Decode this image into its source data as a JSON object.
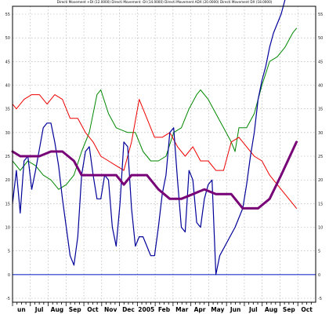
{
  "chart_data": {
    "type": "line",
    "title": "Directi Movement +DI (12.0000) Directi Movement -DI (14.0000) Directi Movement ADX (20.0000) Directi Movement DX (18.0000)",
    "xlabel": "",
    "ylabel": "",
    "ylim": [
      -5,
      60
    ],
    "yticks": [
      -5,
      0,
      5,
      10,
      15,
      20,
      25,
      30,
      35,
      40,
      45,
      50,
      55
    ],
    "x_labels": [
      "un",
      "Jul",
      "Aug",
      "Sep",
      "Oct",
      "Nov",
      "Dec",
      "2005",
      "Feb",
      "Mar",
      "Apr",
      "May",
      "Jun",
      "Jul",
      "Aug",
      "Sep",
      "Oct"
    ],
    "xlim": [
      0,
      79
    ],
    "grid": true,
    "reference_line": {
      "value": 0,
      "color": "#2233cc"
    },
    "series": [
      {
        "color": "#008800",
        "points": [
          [
            0,
            24
          ],
          [
            2,
            22
          ],
          [
            4,
            24
          ],
          [
            6,
            23
          ],
          [
            8,
            21
          ],
          [
            10,
            20
          ],
          [
            12,
            18
          ],
          [
            14,
            19
          ],
          [
            16,
            21
          ],
          [
            18,
            26
          ],
          [
            20,
            30
          ],
          [
            22,
            38
          ],
          [
            23,
            39
          ],
          [
            25,
            34
          ],
          [
            27,
            31
          ],
          [
            30,
            30
          ],
          [
            32,
            30
          ],
          [
            34,
            26
          ],
          [
            36,
            24
          ],
          [
            38,
            24
          ],
          [
            40,
            25
          ],
          [
            42,
            30
          ],
          [
            44,
            31
          ],
          [
            46,
            35
          ],
          [
            48,
            38
          ],
          [
            49,
            39
          ],
          [
            51,
            37
          ],
          [
            53,
            34
          ],
          [
            55,
            31
          ],
          [
            57,
            28
          ],
          [
            58,
            26
          ],
          [
            59,
            31
          ],
          [
            61,
            31
          ],
          [
            63,
            34
          ],
          [
            65,
            40
          ],
          [
            67,
            45
          ],
          [
            69,
            46
          ],
          [
            71,
            48
          ],
          [
            73,
            51
          ],
          [
            74,
            52
          ]
        ]
      },
      {
        "color": "#ee0000",
        "points": [
          [
            0,
            36
          ],
          [
            1,
            35
          ],
          [
            3,
            37
          ],
          [
            5,
            38
          ],
          [
            7,
            38
          ],
          [
            9,
            36
          ],
          [
            11,
            38
          ],
          [
            13,
            37
          ],
          [
            15,
            33
          ],
          [
            17,
            33
          ],
          [
            19,
            30
          ],
          [
            21,
            28
          ],
          [
            23,
            25
          ],
          [
            25,
            24
          ],
          [
            27,
            23
          ],
          [
            29,
            22
          ],
          [
            31,
            28
          ],
          [
            33,
            37
          ],
          [
            35,
            33
          ],
          [
            37,
            29
          ],
          [
            39,
            29
          ],
          [
            41,
            30
          ],
          [
            43,
            27
          ],
          [
            45,
            25
          ],
          [
            47,
            27
          ],
          [
            49,
            24
          ],
          [
            51,
            24
          ],
          [
            53,
            22
          ],
          [
            55,
            22
          ],
          [
            57,
            28
          ],
          [
            59,
            29
          ],
          [
            61,
            27
          ],
          [
            63,
            25
          ],
          [
            65,
            24
          ],
          [
            67,
            21
          ],
          [
            69,
            19
          ],
          [
            71,
            17
          ],
          [
            73,
            15
          ],
          [
            74,
            14
          ]
        ]
      },
      {
        "color": "#000099",
        "points": [
          [
            0,
            15
          ],
          [
            1,
            22
          ],
          [
            2,
            13
          ],
          [
            3,
            24
          ],
          [
            4,
            25
          ],
          [
            5,
            18
          ],
          [
            6,
            22
          ],
          [
            8,
            31
          ],
          [
            9,
            32
          ],
          [
            10,
            32
          ],
          [
            11,
            28
          ],
          [
            12,
            23
          ],
          [
            13,
            16
          ],
          [
            14,
            10
          ],
          [
            15,
            4
          ],
          [
            16,
            2
          ],
          [
            17,
            8
          ],
          [
            18,
            21
          ],
          [
            19,
            26
          ],
          [
            20,
            27
          ],
          [
            21,
            21
          ],
          [
            22,
            16
          ],
          [
            23,
            16
          ],
          [
            24,
            21
          ],
          [
            25,
            20
          ],
          [
            26,
            10
          ],
          [
            27,
            6
          ],
          [
            28,
            15
          ],
          [
            29,
            28
          ],
          [
            30,
            27
          ],
          [
            31,
            14
          ],
          [
            32,
            6
          ],
          [
            33,
            8
          ],
          [
            34,
            8
          ],
          [
            35,
            6
          ],
          [
            36,
            4
          ],
          [
            37,
            4
          ],
          [
            38,
            10
          ],
          [
            39,
            17
          ],
          [
            40,
            21
          ],
          [
            41,
            30
          ],
          [
            42,
            31
          ],
          [
            43,
            20
          ],
          [
            44,
            10
          ],
          [
            45,
            9
          ],
          [
            46,
            22
          ],
          [
            47,
            20
          ],
          [
            48,
            11
          ],
          [
            49,
            10
          ],
          [
            50,
            16
          ],
          [
            51,
            19
          ],
          [
            52,
            20
          ],
          [
            53,
            0
          ],
          [
            54,
            4
          ],
          [
            56,
            7
          ],
          [
            58,
            10
          ],
          [
            60,
            14
          ],
          [
            61,
            19
          ],
          [
            62,
            25
          ],
          [
            63,
            30
          ],
          [
            64,
            37
          ],
          [
            65,
            41
          ],
          [
            66,
            44
          ],
          [
            67,
            48
          ],
          [
            68,
            51
          ],
          [
            70,
            55
          ],
          [
            71,
            58
          ]
        ]
      },
      {
        "color": "#770077",
        "points": [
          [
            0,
            26
          ],
          [
            2,
            25
          ],
          [
            7,
            25
          ],
          [
            10,
            26
          ],
          [
            13,
            26
          ],
          [
            16,
            24
          ],
          [
            18,
            21
          ],
          [
            23,
            21
          ],
          [
            27,
            21
          ],
          [
            29,
            19
          ],
          [
            31,
            21
          ],
          [
            35,
            21
          ],
          [
            38,
            18
          ],
          [
            41,
            16
          ],
          [
            44,
            16
          ],
          [
            47,
            17
          ],
          [
            50,
            18
          ],
          [
            53,
            17
          ],
          [
            57,
            17
          ],
          [
            60,
            14
          ],
          [
            64,
            14
          ],
          [
            67,
            16
          ],
          [
            70,
            21
          ],
          [
            74,
            28
          ]
        ]
      }
    ]
  }
}
